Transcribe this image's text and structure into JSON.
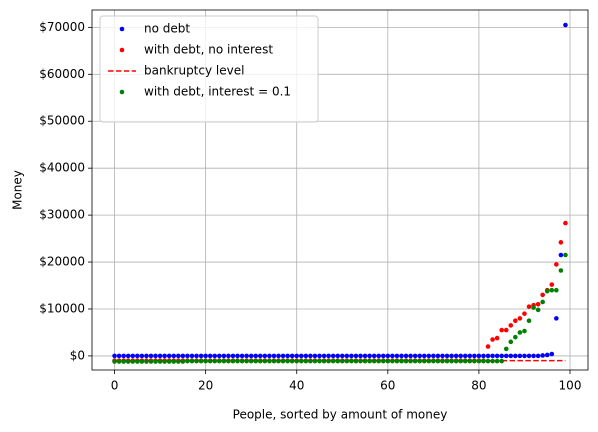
{
  "chart_data": {
    "type": "scatter",
    "xlabel": "People, sorted by amount of money",
    "ylabel": "Money",
    "xlim": [
      -4.95,
      103.95
    ],
    "ylim": [
      -3000,
      73700
    ],
    "xticks": [
      0,
      20,
      40,
      60,
      80,
      100
    ],
    "yticks": [
      {
        "value": 0,
        "label": "$0"
      },
      {
        "value": 10000,
        "label": "$10000"
      },
      {
        "value": 20000,
        "label": "$20000"
      },
      {
        "value": 30000,
        "label": "$30000"
      },
      {
        "value": 40000,
        "label": "$40000"
      },
      {
        "value": 50000,
        "label": "$50000"
      },
      {
        "value": 60000,
        "label": "$60000"
      },
      {
        "value": 70000,
        "label": "$70000"
      }
    ],
    "grid": true,
    "legend": "upper left",
    "series": [
      {
        "name": "no debt",
        "color": "#0000ff",
        "style": "points",
        "x": [
          0,
          1,
          2,
          3,
          4,
          5,
          6,
          7,
          8,
          9,
          10,
          11,
          12,
          13,
          14,
          15,
          16,
          17,
          18,
          19,
          20,
          21,
          22,
          23,
          24,
          25,
          26,
          27,
          28,
          29,
          30,
          31,
          32,
          33,
          34,
          35,
          36,
          37,
          38,
          39,
          40,
          41,
          42,
          43,
          44,
          45,
          46,
          47,
          48,
          49,
          50,
          51,
          52,
          53,
          54,
          55,
          56,
          57,
          58,
          59,
          60,
          61,
          62,
          63,
          64,
          65,
          66,
          67,
          68,
          69,
          70,
          71,
          72,
          73,
          74,
          75,
          76,
          77,
          78,
          79,
          80,
          81,
          82,
          83,
          84,
          85,
          86,
          87,
          88,
          89,
          90,
          91,
          92,
          93,
          94,
          95,
          96,
          97,
          98,
          99
        ],
        "values": [
          0,
          0,
          0,
          0,
          0,
          0,
          0,
          0,
          0,
          0,
          0,
          0,
          0,
          0,
          0,
          0,
          0,
          0,
          0,
          0,
          0,
          0,
          0,
          0,
          0,
          0,
          0,
          0,
          0,
          0,
          0,
          0,
          0,
          0,
          0,
          0,
          0,
          0,
          0,
          0,
          0,
          0,
          0,
          0,
          0,
          0,
          0,
          0,
          0,
          0,
          0,
          0,
          0,
          0,
          0,
          0,
          0,
          0,
          0,
          0,
          0,
          0,
          0,
          0,
          0,
          0,
          0,
          0,
          0,
          0,
          0,
          0,
          0,
          0,
          0,
          0,
          0,
          0,
          0,
          0,
          0,
          0,
          0,
          0,
          0,
          0,
          0,
          0,
          0,
          0,
          0,
          0,
          0,
          0,
          100,
          200,
          400,
          8000,
          21500,
          70500
        ]
      },
      {
        "name": "with debt, no interest",
        "color": "#ff0000",
        "style": "points",
        "x": [
          0,
          1,
          2,
          3,
          4,
          5,
          6,
          7,
          8,
          9,
          10,
          11,
          12,
          13,
          14,
          15,
          16,
          17,
          18,
          19,
          20,
          21,
          22,
          23,
          24,
          25,
          26,
          27,
          28,
          29,
          30,
          31,
          32,
          33,
          34,
          35,
          36,
          37,
          38,
          39,
          40,
          41,
          42,
          43,
          44,
          45,
          46,
          47,
          48,
          49,
          50,
          51,
          52,
          53,
          54,
          55,
          56,
          57,
          58,
          59,
          60,
          61,
          62,
          63,
          64,
          65,
          66,
          67,
          68,
          69,
          70,
          71,
          72,
          73,
          74,
          75,
          76,
          77,
          78,
          79,
          80,
          81,
          82,
          83,
          84,
          85,
          86,
          87,
          88,
          89,
          90,
          91,
          92,
          93,
          94,
          95,
          96,
          97,
          98,
          99
        ],
        "values": [
          -1000,
          -1000,
          -1000,
          -1000,
          -1000,
          -1000,
          -1000,
          -1000,
          -1000,
          -1000,
          -1000,
          -1000,
          -1000,
          -1000,
          -1000,
          -1000,
          -1000,
          -1000,
          -1000,
          -1000,
          -1000,
          -1000,
          -1000,
          -1000,
          -1000,
          -1000,
          -1000,
          -1000,
          -1000,
          -1000,
          -1000,
          -1000,
          -1000,
          -1000,
          -1000,
          -1000,
          -1000,
          -1000,
          -1000,
          -1000,
          -1000,
          -1000,
          -1000,
          -1000,
          -1000,
          -1000,
          -1000,
          -1000,
          -1000,
          -1000,
          -1000,
          -1000,
          -1000,
          -1000,
          -1000,
          -1000,
          -1000,
          -1000,
          -1000,
          -1000,
          -1000,
          -1000,
          -1000,
          -1000,
          -1000,
          -1000,
          -1000,
          -1000,
          -1000,
          -1000,
          -1000,
          -1000,
          -1000,
          -1000,
          -1000,
          -1000,
          -1000,
          -1000,
          -1000,
          -1000,
          -1000,
          -1000,
          2000,
          3500,
          3800,
          5500,
          5500,
          6500,
          7500,
          8000,
          9000,
          10500,
          10800,
          11000,
          13000,
          14000,
          15200,
          19500,
          24200,
          28300
        ]
      },
      {
        "name": "bankruptcy level",
        "color": "#ff0000",
        "style": "dashed",
        "x": [
          0,
          99
        ],
        "values": [
          -1000,
          -1000
        ]
      },
      {
        "name": "with debt, interest = 0.1",
        "color": "#008000",
        "style": "points",
        "x": [
          0,
          1,
          2,
          3,
          4,
          5,
          6,
          7,
          8,
          9,
          10,
          11,
          12,
          13,
          14,
          15,
          16,
          17,
          18,
          19,
          20,
          21,
          22,
          23,
          24,
          25,
          26,
          27,
          28,
          29,
          30,
          31,
          32,
          33,
          34,
          35,
          36,
          37,
          38,
          39,
          40,
          41,
          42,
          43,
          44,
          45,
          46,
          47,
          48,
          49,
          50,
          51,
          52,
          53,
          54,
          55,
          56,
          57,
          58,
          59,
          60,
          61,
          62,
          63,
          64,
          65,
          66,
          67,
          68,
          69,
          70,
          71,
          72,
          73,
          74,
          75,
          76,
          77,
          78,
          79,
          80,
          81,
          82,
          83,
          84,
          85,
          86,
          87,
          88,
          89,
          90,
          91,
          92,
          93,
          94,
          95,
          96,
          97,
          98,
          99
        ],
        "values": [
          -1200,
          -1200,
          -1200,
          -1200,
          -1200,
          -1200,
          -1200,
          -1200,
          -1200,
          -1200,
          -1200,
          -1200,
          -1200,
          -1200,
          -1200,
          -1200,
          -1100,
          -1100,
          -1100,
          -1100,
          -1100,
          -1100,
          -1100,
          -1100,
          -1100,
          -1100,
          -1100,
          -1100,
          -1100,
          -1100,
          -1100,
          -1100,
          -1100,
          -1100,
          -1100,
          -1100,
          -1100,
          -1100,
          -1100,
          -1100,
          -1100,
          -1100,
          -1100,
          -1100,
          -1100,
          -1100,
          -1100,
          -1100,
          -1100,
          -1100,
          -1100,
          -1100,
          -1100,
          -1100,
          -1100,
          -1100,
          -1100,
          -1100,
          -1100,
          -1100,
          -1100,
          -1100,
          -1100,
          -1100,
          -1100,
          -1100,
          -1100,
          -1100,
          -1100,
          -1100,
          -1100,
          -1100,
          -1100,
          -1100,
          -1100,
          -1100,
          -1100,
          -1100,
          -1100,
          -1100,
          -1100,
          -1100,
          -1100,
          -1100,
          -1100,
          -1100,
          1500,
          3000,
          4000,
          5000,
          5300,
          7500,
          10300,
          9800,
          11500,
          13800,
          14000,
          14000,
          18200,
          21500
        ]
      }
    ]
  }
}
